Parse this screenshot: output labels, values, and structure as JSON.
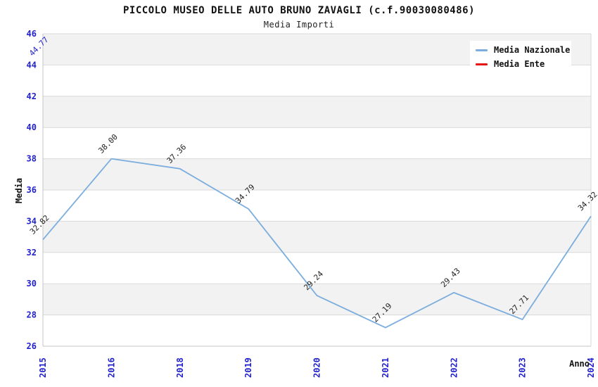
{
  "chart_data": {
    "type": "line",
    "title": "PICCOLO MUSEO DELLE AUTO BRUNO ZAVAGLI (c.f.90030080486)",
    "subtitle": "Media Importi",
    "xlabel": "Anno",
    "ylabel": "Media",
    "categories": [
      "2015",
      "2016",
      "2018",
      "2019",
      "2020",
      "2021",
      "2022",
      "2023",
      "2024"
    ],
    "series": [
      {
        "name": "Media Nazionale",
        "color": "#7badde",
        "label_color": "#222222",
        "draw_line": true,
        "values": [
          32.82,
          38.0,
          37.36,
          34.79,
          29.24,
          27.19,
          29.43,
          27.71,
          34.32
        ]
      },
      {
        "name": "Media Ente",
        "color": "#e81414",
        "label_color": "#2222cc",
        "draw_line": false,
        "label_offset": [
          -15,
          5
        ],
        "values": [
          44.77,
          null,
          null,
          null,
          null,
          null,
          null,
          null,
          null
        ]
      }
    ],
    "ylim": [
      26,
      46
    ],
    "ytick_step": 2,
    "grid": true,
    "alternating_bands": true,
    "legend_position": "top-right",
    "value_label_format": "0.00",
    "colors": {
      "axis_text": "#2222cc",
      "band_fill": "#f2f2f2",
      "grid_line": "#d9d9d9",
      "axis_line": "#c6c6c6",
      "title_text": "#111111"
    }
  }
}
